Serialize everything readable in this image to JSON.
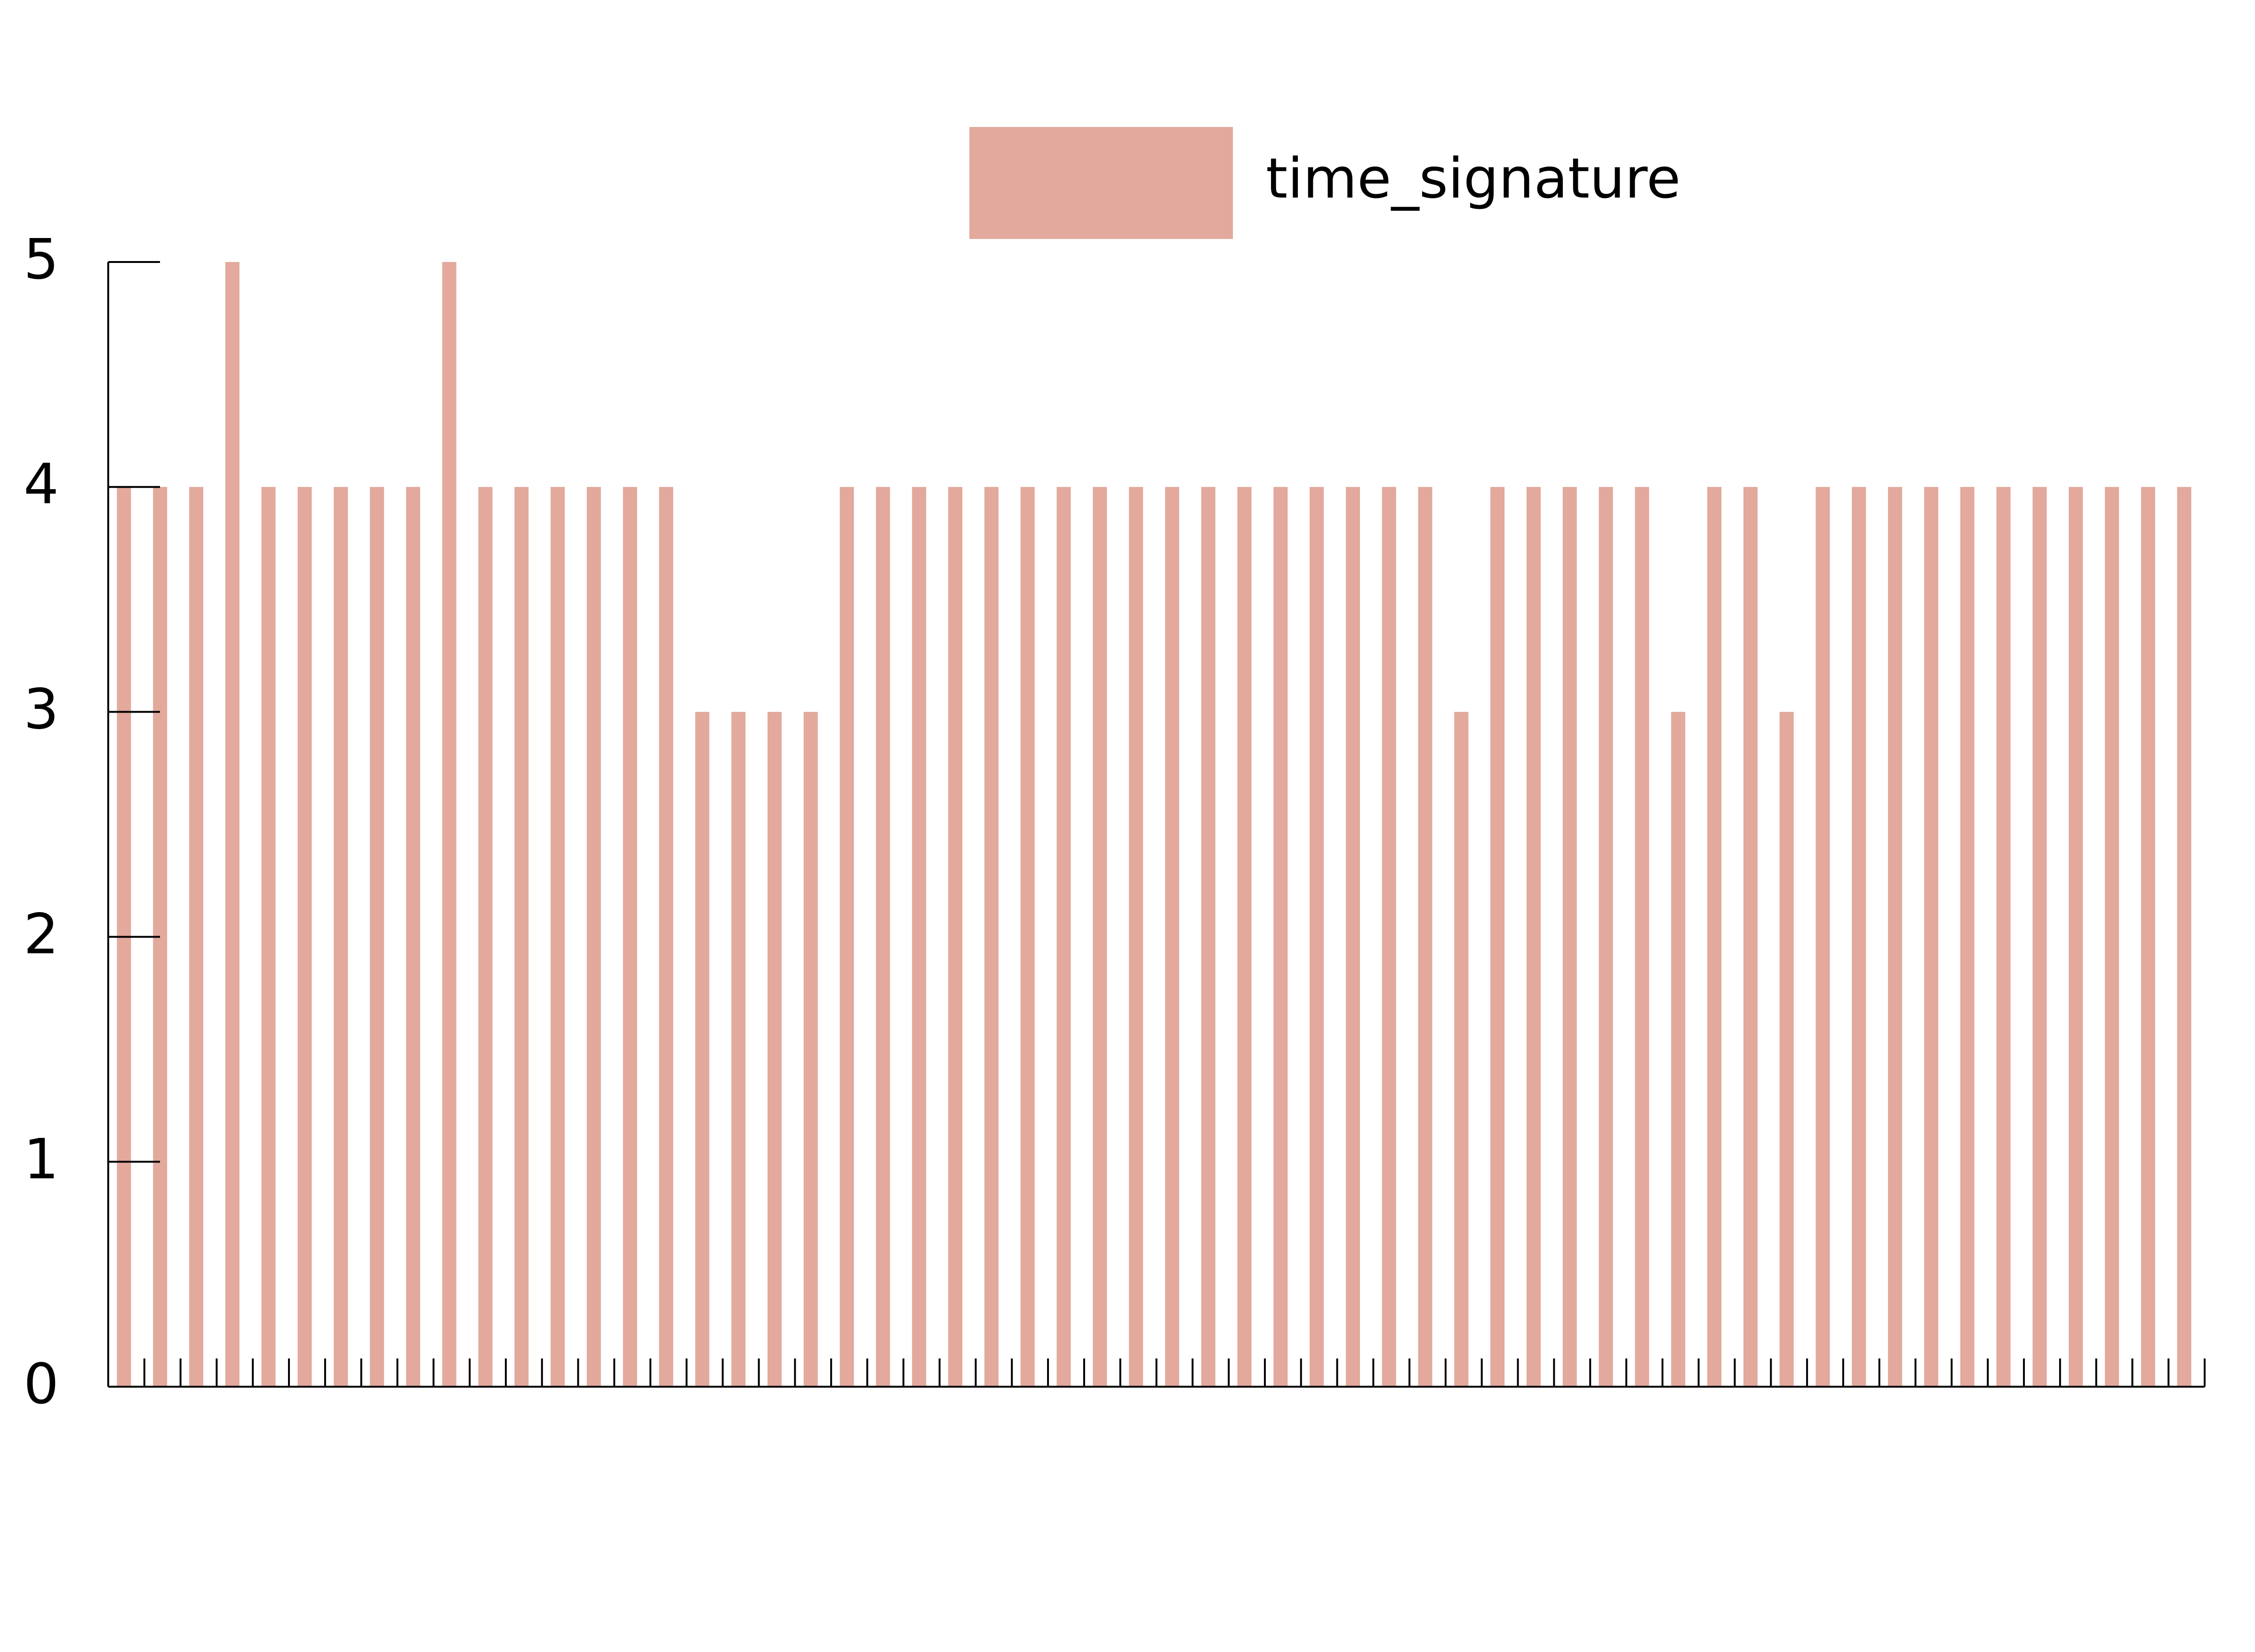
{
  "chart_data": {
    "type": "bar",
    "legend_position": "top-right",
    "grid": false,
    "ylim": [
      0,
      5
    ],
    "yticks": [
      0,
      1,
      2,
      3,
      4,
      5
    ],
    "bar_color": "#e2a99c",
    "series": [
      {
        "name": "time_signature",
        "values": [
          4,
          4,
          4,
          5,
          4,
          4,
          4,
          4,
          4,
          5,
          4,
          4,
          4,
          4,
          4,
          4,
          3,
          3,
          3,
          3,
          4,
          4,
          4,
          4,
          4,
          4,
          4,
          4,
          4,
          4,
          4,
          4,
          4,
          4,
          4,
          4,
          4,
          3,
          4,
          4,
          4,
          4,
          4,
          3,
          4,
          4,
          3,
          4,
          4,
          4,
          4,
          4,
          4,
          4,
          4,
          4,
          4,
          4
        ]
      }
    ]
  }
}
